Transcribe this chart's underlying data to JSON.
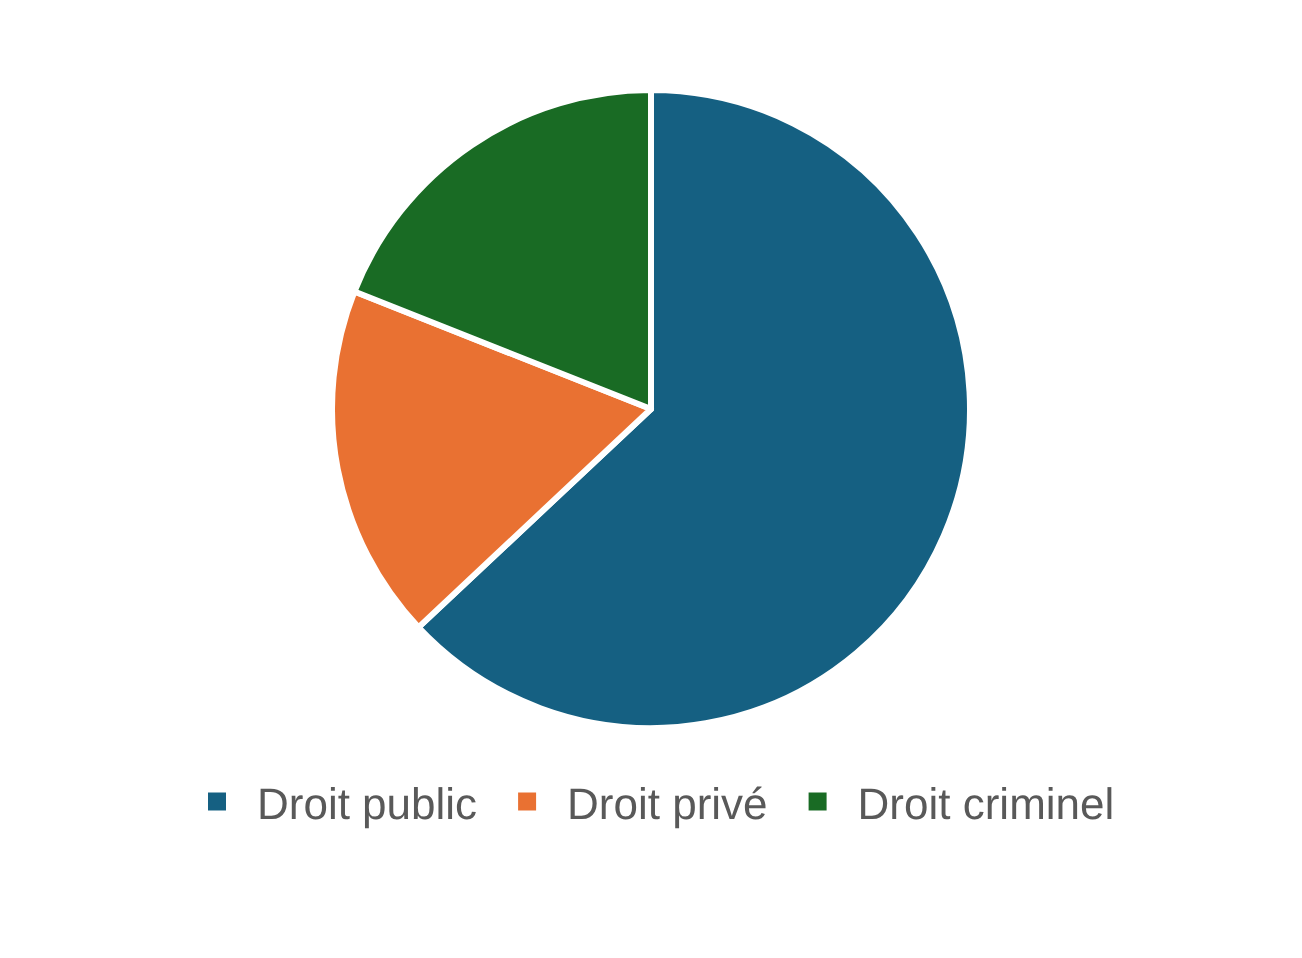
{
  "chart_data": {
    "type": "pie",
    "categories": [
      "Droit public",
      "Droit privé",
      "Droit criminel"
    ],
    "values": [
      63,
      18,
      19
    ],
    "colors": [
      "#156082",
      "#e97132",
      "#196b24"
    ],
    "legend": "bottom"
  }
}
